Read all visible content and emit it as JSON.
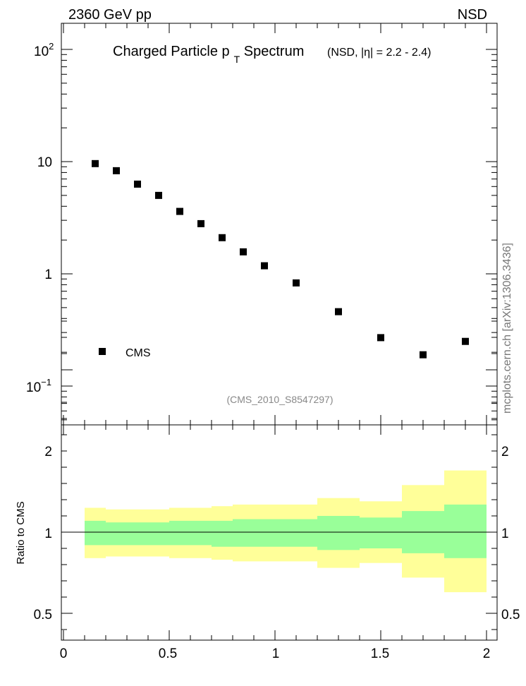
{
  "header": {
    "left": "2360 GeV pp",
    "right": "NSD"
  },
  "title": {
    "main_a": "Charged Particle p",
    "main_sub": "T",
    "main_b": " Spectrum",
    "qualifier": "(NSD, |η| = 2.2 - 2.4)"
  },
  "analysis_tag": "(CMS_2010_S8547297)",
  "side_label": "mcplots.cern.ch [arXiv:1306.3436]",
  "colors": {
    "inner_band": "#99ff99",
    "outer_band": "#ffff99",
    "marker": "#000000",
    "tag_text": "#888888",
    "side_text": "#777777"
  },
  "chart_data": [
    {
      "type": "scatter",
      "yscale": "log",
      "ylim": [
        0.05,
        170
      ],
      "xlim": [
        0,
        2.05
      ],
      "y_tick_labels": [
        "10^-1",
        "1",
        "10",
        "10^2"
      ],
      "legend": {
        "position": "bottom-left",
        "entries": [
          "CMS"
        ]
      },
      "series": [
        {
          "name": "CMS",
          "x": [
            0.15,
            0.25,
            0.35,
            0.45,
            0.55,
            0.65,
            0.75,
            0.85,
            0.95,
            1.1,
            1.3,
            1.5,
            1.7,
            1.9
          ],
          "y": [
            9.6,
            8.3,
            6.3,
            5.0,
            3.6,
            2.8,
            2.1,
            1.57,
            1.18,
            0.83,
            0.46,
            0.27,
            0.19,
            0.25
          ]
        }
      ]
    },
    {
      "type": "area",
      "ylabel": "Ratio to CMS",
      "ylim": [
        0.35,
        2.3
      ],
      "xlim": [
        0,
        2.05
      ],
      "x_tick_labels": [
        "0",
        "0.5",
        "1",
        "1.5",
        "2"
      ],
      "y_tick_labels": [
        "0.5",
        "1",
        "2"
      ],
      "reference_line": 1,
      "bins": [
        {
          "x0": 0.1,
          "x1": 0.2,
          "inner": [
            0.92,
            1.07
          ],
          "outer": [
            0.84,
            1.15
          ]
        },
        {
          "x0": 0.2,
          "x1": 0.3,
          "inner": [
            0.92,
            1.06
          ],
          "outer": [
            0.85,
            1.14
          ]
        },
        {
          "x0": 0.3,
          "x1": 0.4,
          "inner": [
            0.92,
            1.06
          ],
          "outer": [
            0.85,
            1.14
          ]
        },
        {
          "x0": 0.4,
          "x1": 0.5,
          "inner": [
            0.92,
            1.06
          ],
          "outer": [
            0.85,
            1.14
          ]
        },
        {
          "x0": 0.5,
          "x1": 0.6,
          "inner": [
            0.92,
            1.07
          ],
          "outer": [
            0.84,
            1.15
          ]
        },
        {
          "x0": 0.6,
          "x1": 0.7,
          "inner": [
            0.92,
            1.07
          ],
          "outer": [
            0.84,
            1.15
          ]
        },
        {
          "x0": 0.7,
          "x1": 0.8,
          "inner": [
            0.91,
            1.07
          ],
          "outer": [
            0.83,
            1.16
          ]
        },
        {
          "x0": 0.8,
          "x1": 0.9,
          "inner": [
            0.91,
            1.08
          ],
          "outer": [
            0.82,
            1.17
          ]
        },
        {
          "x0": 0.9,
          "x1": 1.0,
          "inner": [
            0.91,
            1.08
          ],
          "outer": [
            0.82,
            1.17
          ]
        },
        {
          "x0": 1.0,
          "x1": 1.2,
          "inner": [
            0.91,
            1.08
          ],
          "outer": [
            0.82,
            1.17
          ]
        },
        {
          "x0": 1.2,
          "x1": 1.4,
          "inner": [
            0.89,
            1.1
          ],
          "outer": [
            0.78,
            1.21
          ]
        },
        {
          "x0": 1.4,
          "x1": 1.6,
          "inner": [
            0.9,
            1.09
          ],
          "outer": [
            0.81,
            1.19
          ]
        },
        {
          "x0": 1.6,
          "x1": 1.8,
          "inner": [
            0.87,
            1.13
          ],
          "outer": [
            0.72,
            1.29
          ]
        },
        {
          "x0": 1.8,
          "x1": 2.0,
          "inner": [
            0.84,
            1.17
          ],
          "outer": [
            0.63,
            1.38
          ]
        }
      ]
    }
  ]
}
